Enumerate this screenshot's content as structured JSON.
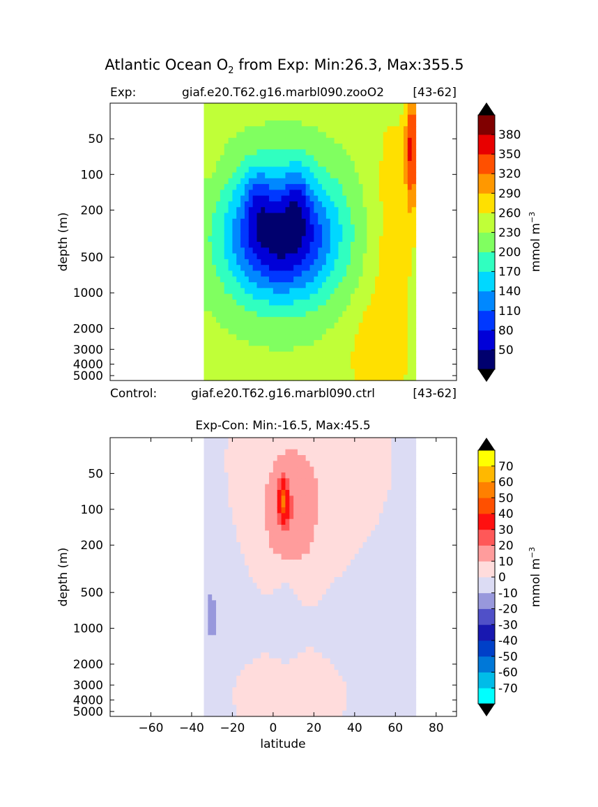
{
  "figure": {
    "title_main": "Atlantic Ocean O",
    "title_sub": "2",
    "title_rest": " from Exp: Min:26.3, Max:355.5"
  },
  "chart_data": [
    {
      "type": "heatmap",
      "panel": "top",
      "header_left": "Exp:",
      "header_mid": "giaf.e20.T62.g16.marbl090.zooO2",
      "header_right": "[43-62]",
      "footer_left": "Control:",
      "footer_mid": "giaf.e20.T62.g16.marbl090.ctrl",
      "footer_right": "[43-62]",
      "title": "",
      "xlabel": "",
      "ylabel": "depth (m)",
      "y_scale": "log",
      "ylim": [
        5500,
        25
      ],
      "xlim": [
        -80,
        90
      ],
      "yticks": [
        50,
        100,
        200,
        500,
        1000,
        2000,
        3000,
        4000,
        5000
      ],
      "yticklabels": [
        "50",
        "100",
        "200",
        "500",
        "1000",
        "2000",
        "3000",
        "4000",
        "5000"
      ],
      "data_lat_range": [
        -34,
        70
      ],
      "colorbar": {
        "label": "mmol m",
        "label_sup": "−3",
        "levels": [
          50,
          80,
          110,
          140,
          170,
          200,
          230,
          260,
          290,
          320,
          350,
          380
        ],
        "ticklabels": [
          "50",
          "80",
          "110",
          "140",
          "170",
          "200",
          "230",
          "260",
          "290",
          "320",
          "350",
          "380"
        ],
        "colors": [
          "#00006e",
          "#0000d8",
          "#0038ff",
          "#0088ff",
          "#00d8ff",
          "#30ffc0",
          "#80ff60",
          "#c0ff38",
          "#ffe000",
          "#ff9800",
          "#ff5000",
          "#e80000",
          "#800000"
        ],
        "extend": "both",
        "under_color": "#000000",
        "over_color": "#000000"
      },
      "field": {
        "background_value": 240,
        "features": [
          {
            "lat": 4,
            "depth": 330,
            "lat_scale": 28,
            "logdepth_scale": 0.55,
            "amplitude": -210
          },
          {
            "lat": -8,
            "depth": 160,
            "lat_scale": 6,
            "logdepth_scale": 0.3,
            "amplitude": -40
          },
          {
            "lat": 12,
            "depth": 160,
            "lat_scale": 6,
            "logdepth_scale": 0.3,
            "amplitude": -40
          },
          {
            "lat": 58,
            "depth": 400,
            "lat_scale": 12,
            "logdepth_scale": 1.4,
            "amplitude": 35
          },
          {
            "lat": 68,
            "depth": 60,
            "lat_scale": 3,
            "logdepth_scale": 0.5,
            "amplitude": 110
          },
          {
            "lat": 48,
            "depth": 3500,
            "lat_scale": 14,
            "logdepth_scale": 0.5,
            "amplitude": 30
          },
          {
            "lat": -30,
            "depth": 60,
            "lat_scale": 6,
            "logdepth_scale": 0.8,
            "amplitude": 10
          }
        ]
      }
    },
    {
      "type": "heatmap",
      "panel": "bottom",
      "title": "Exp-Con: Min:-16.5, Max:45.5",
      "xlabel": "latitude",
      "ylabel": "depth (m)",
      "y_scale": "log",
      "ylim": [
        5500,
        25
      ],
      "xlim": [
        -80,
        90
      ],
      "xticks": [
        -60,
        -40,
        -20,
        0,
        20,
        40,
        60,
        80
      ],
      "xticklabels": [
        "−60",
        "−40",
        "−20",
        "0",
        "20",
        "40",
        "60",
        "80"
      ],
      "yticks": [
        50,
        100,
        200,
        500,
        1000,
        2000,
        3000,
        4000,
        5000
      ],
      "yticklabels": [
        "50",
        "100",
        "200",
        "500",
        "1000",
        "2000",
        "3000",
        "4000",
        "5000"
      ],
      "data_lat_range": [
        -34,
        70
      ],
      "colorbar": {
        "label": "mmol m",
        "label_sup": "−3",
        "levels": [
          -70,
          -60,
          -50,
          -40,
          -30,
          -20,
          -10,
          0,
          10,
          20,
          30,
          40,
          50,
          60,
          70
        ],
        "ticklabels": [
          "-70",
          "-60",
          "-50",
          "-40",
          "-30",
          "-20",
          "-10",
          "0",
          "10",
          "20",
          "30",
          "40",
          "50",
          "60",
          "70"
        ],
        "colors": [
          "#00ffff",
          "#00bce8",
          "#0078d8",
          "#0040c8",
          "#1818b0",
          "#5050c8",
          "#9898dc",
          "#dcdcf4",
          "#ffdcdc",
          "#ff9c9c",
          "#ff5858",
          "#ff1010",
          "#ff5000",
          "#ff8000",
          "#ffb800",
          "#ffff00"
        ],
        "extend": "both",
        "under_color": "#000000",
        "over_color": "#000000"
      },
      "field": {
        "background_value": -4,
        "features": [
          {
            "lat": 8,
            "depth": 120,
            "lat_scale": 15,
            "logdepth_scale": 0.55,
            "amplitude": 16
          },
          {
            "lat": 5,
            "depth": 85,
            "lat_scale": 2.5,
            "logdepth_scale": 0.18,
            "amplitude": 36
          },
          {
            "lat": 18,
            "depth": 35,
            "lat_scale": 45,
            "logdepth_scale": 1.1,
            "amplitude": 9
          },
          {
            "lat": 8,
            "depth": 3800,
            "lat_scale": 30,
            "logdepth_scale": 0.4,
            "amplitude": 9
          },
          {
            "lat": 6,
            "depth": 750,
            "lat_scale": 6,
            "logdepth_scale": 0.35,
            "amplitude": -8
          },
          {
            "lat": -30,
            "depth": 800,
            "lat_scale": 5,
            "logdepth_scale": 0.35,
            "amplitude": -9
          }
        ]
      }
    }
  ]
}
